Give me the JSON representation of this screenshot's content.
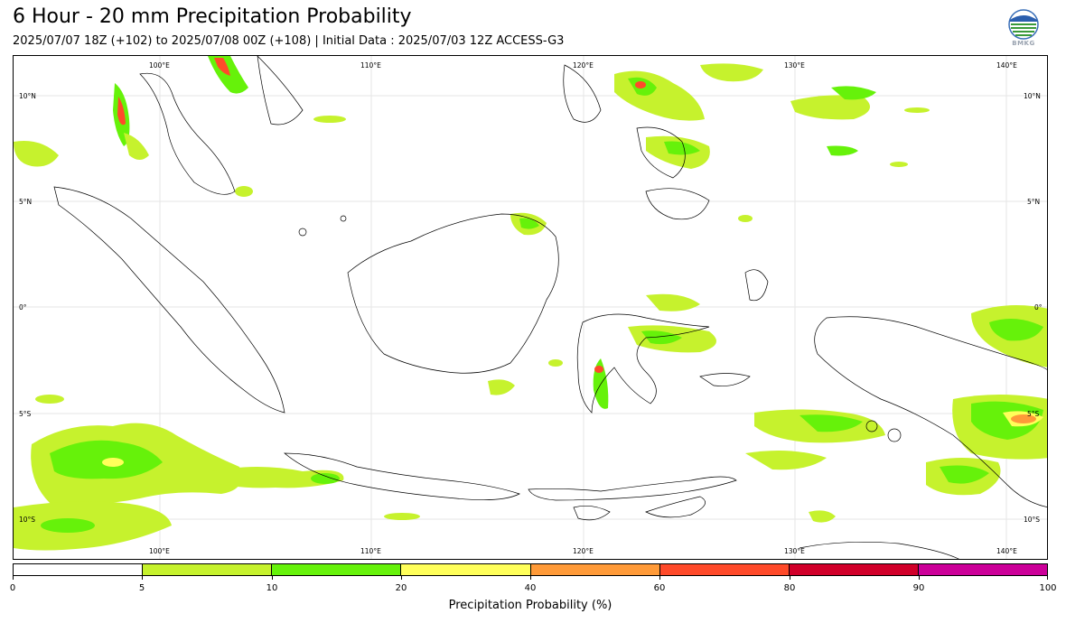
{
  "header": {
    "title": "6 Hour - 20 mm Precipitation Probability",
    "subtitle": "2025/07/07 18Z (+102) to 2025/07/08 00Z (+108) | Initial Data : 2025/07/03 12Z ACCESS-G3",
    "logo_text": "BMKG"
  },
  "map": {
    "lon_labels_top": [
      "100°E",
      "110°E",
      "120°E",
      "130°E",
      "140°E"
    ],
    "lon_labels_bottom": [
      "100°E",
      "110°E",
      "120°E",
      "130°E",
      "140°E"
    ],
    "lat_labels_left": [
      "10°N",
      "5°N",
      "0°",
      "5°S",
      "10°S"
    ],
    "lat_labels_right": [
      "10°N",
      "5°N",
      "0°",
      "5°S",
      "10°S"
    ]
  },
  "colorbar": {
    "title": "Precipitation Probability (%)",
    "ticks": [
      "0",
      "5",
      "10",
      "20",
      "40",
      "60",
      "80",
      "90",
      "100"
    ],
    "colors": [
      "#ffffff",
      "#c6f22d",
      "#66f20a",
      "#ffff5a",
      "#ff9a38",
      "#ff4a2a",
      "#d1002a",
      "#cc0099"
    ]
  }
}
